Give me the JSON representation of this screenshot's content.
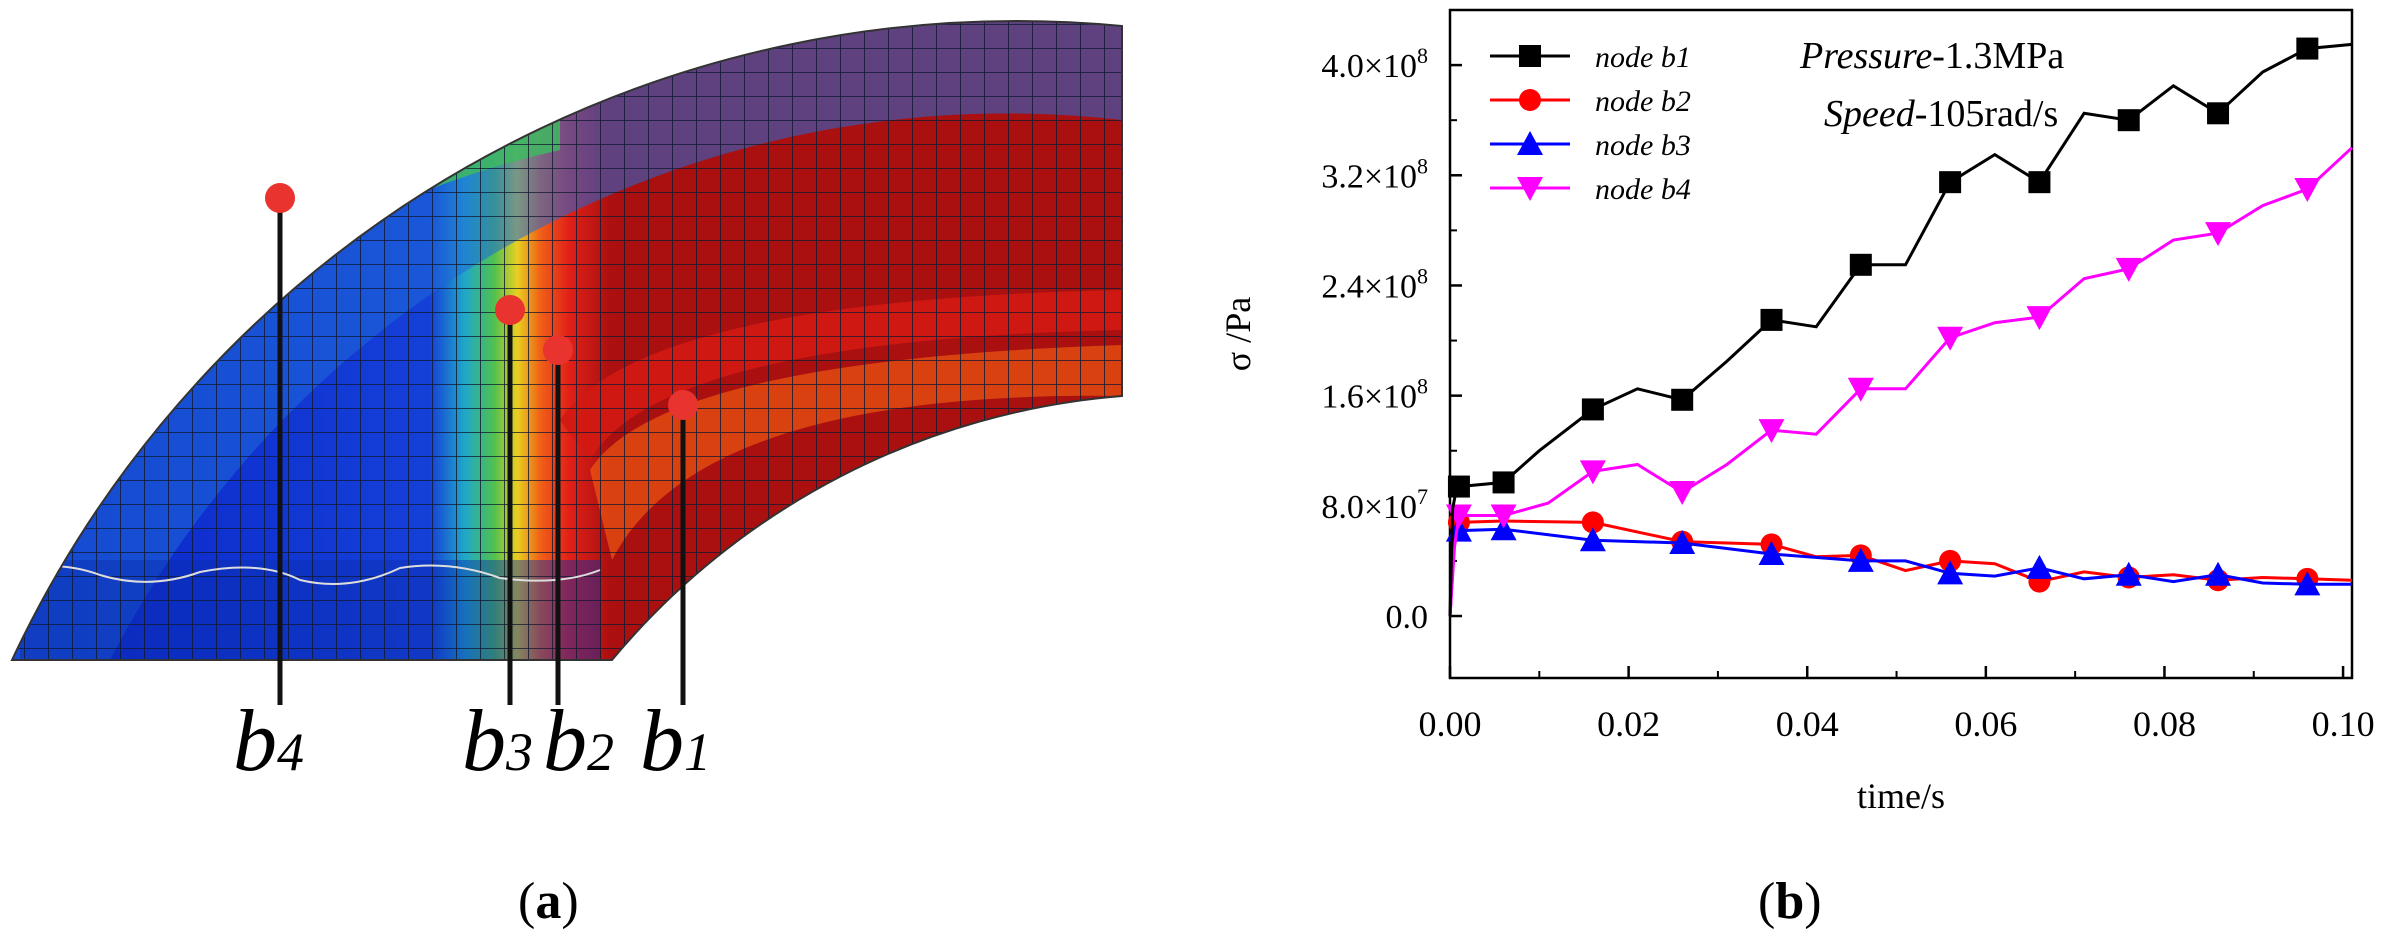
{
  "panel_a": {
    "label_open": "(",
    "label_letter": "a",
    "label_close": ")",
    "nodes": [
      {
        "id": "b4",
        "base": "b",
        "sub": "4"
      },
      {
        "id": "b3",
        "base": "b",
        "sub": "3"
      },
      {
        "id": "b2",
        "base": "b",
        "sub": "2"
      },
      {
        "id": "b1",
        "base": "b",
        "sub": "1"
      }
    ],
    "colors": {
      "marker": "#e8332e",
      "leader": "#111111"
    }
  },
  "panel_b": {
    "label_open": "(",
    "label_letter": "b",
    "label_close": ")",
    "annotation": {
      "pressure_italic": "Pressure",
      "pressure_value": "-1.3MPa",
      "speed_italic": "Speed",
      "speed_value": "-105rad/s"
    }
  },
  "chart_data": {
    "type": "line",
    "xlabel": "time/s",
    "ylabel": "σ /Pa",
    "xlim": [
      0,
      0.101
    ],
    "ylim": [
      -45000000.0,
      440000000.0
    ],
    "x_ticks": [
      {
        "value": 0.0,
        "label": "0.00"
      },
      {
        "value": 0.02,
        "label": "0.02"
      },
      {
        "value": 0.04,
        "label": "0.04"
      },
      {
        "value": 0.06,
        "label": "0.06"
      },
      {
        "value": 0.08,
        "label": "0.08"
      },
      {
        "value": 0.1,
        "label": "0.10"
      }
    ],
    "y_ticks": [
      {
        "value": 0,
        "label": "0.0",
        "mant": "0.0",
        "exp": ""
      },
      {
        "value": 80000000.0,
        "label": "8.0×10^7",
        "mant": "8.0×10",
        "exp": "7"
      },
      {
        "value": 160000000.0,
        "label": "1.6×10^8",
        "mant": "1.6×10",
        "exp": "8"
      },
      {
        "value": 240000000.0,
        "label": "2.4×10^8",
        "mant": "2.4×10",
        "exp": "8"
      },
      {
        "value": 320000000.0,
        "label": "3.2×10^8",
        "mant": "3.2×10",
        "exp": "8"
      },
      {
        "value": 400000000.0,
        "label": "4.0×10^8",
        "mant": "4.0×10",
        "exp": "8"
      }
    ],
    "series": [
      {
        "name": "node b1",
        "color": "#000000",
        "marker": "square",
        "points": [
          [
            0,
            0
          ],
          [
            0.0003,
            78000000.0
          ],
          [
            0.0007,
            92000000.0
          ],
          [
            0.001,
            94000000.0
          ],
          [
            0.006,
            97000000.0
          ],
          [
            0.01,
            120000000.0
          ],
          [
            0.016,
            150000000.0
          ],
          [
            0.021,
            165000000.0
          ],
          [
            0.026,
            157000000.0
          ],
          [
            0.031,
            185000000.0
          ],
          [
            0.036,
            215000000.0
          ],
          [
            0.041,
            210000000.0
          ],
          [
            0.046,
            255000000.0
          ],
          [
            0.051,
            255000000.0
          ],
          [
            0.056,
            315000000.0
          ],
          [
            0.061,
            335000000.0
          ],
          [
            0.066,
            315000000.0
          ],
          [
            0.071,
            365000000.0
          ],
          [
            0.076,
            360000000.0
          ],
          [
            0.081,
            385000000.0
          ],
          [
            0.086,
            365000000.0
          ],
          [
            0.091,
            395000000.0
          ],
          [
            0.096,
            412000000.0
          ],
          [
            0.101,
            415000000.0
          ]
        ],
        "markers": [
          [
            0.001,
            94000000.0
          ],
          [
            0.006,
            97000000.0
          ],
          [
            0.016,
            150000000.0
          ],
          [
            0.026,
            157000000.0
          ],
          [
            0.036,
            215000000.0
          ],
          [
            0.046,
            255000000.0
          ],
          [
            0.056,
            315000000.0
          ],
          [
            0.066,
            315000000.0
          ],
          [
            0.076,
            360000000.0
          ],
          [
            0.086,
            365000000.0
          ],
          [
            0.096,
            412000000.0
          ]
        ]
      },
      {
        "name": "node b2",
        "color": "#ff0000",
        "marker": "circle",
        "points": [
          [
            0,
            0
          ],
          [
            0.0005,
            60000000.0
          ],
          [
            0.001,
            68000000.0
          ],
          [
            0.006,
            69000000.0
          ],
          [
            0.016,
            68000000.0
          ],
          [
            0.026,
            54000000.0
          ],
          [
            0.036,
            52000000.0
          ],
          [
            0.041,
            43000000.0
          ],
          [
            0.046,
            44000000.0
          ],
          [
            0.051,
            33000000.0
          ],
          [
            0.056,
            40000000.0
          ],
          [
            0.061,
            38000000.0
          ],
          [
            0.066,
            25000000.0
          ],
          [
            0.071,
            32000000.0
          ],
          [
            0.076,
            28000000.0
          ],
          [
            0.081,
            30000000.0
          ],
          [
            0.086,
            26000000.0
          ],
          [
            0.091,
            28000000.0
          ],
          [
            0.096,
            27000000.0
          ],
          [
            0.101,
            26000000.0
          ]
        ],
        "markers": [
          [
            0.001,
            68000000.0
          ],
          [
            0.016,
            68000000.0
          ],
          [
            0.026,
            54000000.0
          ],
          [
            0.036,
            52000000.0
          ],
          [
            0.046,
            44000000.0
          ],
          [
            0.056,
            40000000.0
          ],
          [
            0.066,
            25000000.0
          ],
          [
            0.076,
            28000000.0
          ],
          [
            0.086,
            26000000.0
          ],
          [
            0.096,
            27000000.0
          ]
        ]
      },
      {
        "name": "node b3",
        "color": "#0000ff",
        "marker": "triangle-up",
        "points": [
          [
            0,
            0
          ],
          [
            0.0005,
            55000000.0
          ],
          [
            0.001,
            62000000.0
          ],
          [
            0.006,
            63000000.0
          ],
          [
            0.016,
            55000000.0
          ],
          [
            0.026,
            53000000.0
          ],
          [
            0.036,
            45000000.0
          ],
          [
            0.046,
            40000000.0
          ],
          [
            0.051,
            40000000.0
          ],
          [
            0.056,
            31000000.0
          ],
          [
            0.061,
            29000000.0
          ],
          [
            0.066,
            35000000.0
          ],
          [
            0.071,
            27000000.0
          ],
          [
            0.076,
            30000000.0
          ],
          [
            0.081,
            25000000.0
          ],
          [
            0.086,
            30000000.0
          ],
          [
            0.091,
            24000000.0
          ],
          [
            0.096,
            23000000.0
          ],
          [
            0.101,
            23000000.0
          ]
        ],
        "markers": [
          [
            0.001,
            62000000.0
          ],
          [
            0.006,
            63000000.0
          ],
          [
            0.016,
            55000000.0
          ],
          [
            0.026,
            53000000.0
          ],
          [
            0.036,
            45000000.0
          ],
          [
            0.046,
            40000000.0
          ],
          [
            0.056,
            31000000.0
          ],
          [
            0.066,
            35000000.0
          ],
          [
            0.076,
            30000000.0
          ],
          [
            0.086,
            30000000.0
          ],
          [
            0.096,
            23000000.0
          ]
        ]
      },
      {
        "name": "node b4",
        "color": "#ff00ff",
        "marker": "triangle-down",
        "points": [
          [
            0,
            0
          ],
          [
            0.0005,
            50000000.0
          ],
          [
            0.001,
            73000000.0
          ],
          [
            0.006,
            73000000.0
          ],
          [
            0.011,
            82000000.0
          ],
          [
            0.016,
            105000000.0
          ],
          [
            0.021,
            110000000.0
          ],
          [
            0.026,
            90000000.0
          ],
          [
            0.031,
            110000000.0
          ],
          [
            0.036,
            135000000.0
          ],
          [
            0.041,
            132000000.0
          ],
          [
            0.046,
            165000000.0
          ],
          [
            0.051,
            165000000.0
          ],
          [
            0.056,
            202000000.0
          ],
          [
            0.061,
            213000000.0
          ],
          [
            0.066,
            217000000.0
          ],
          [
            0.071,
            245000000.0
          ],
          [
            0.076,
            252000000.0
          ],
          [
            0.081,
            273000000.0
          ],
          [
            0.086,
            278000000.0
          ],
          [
            0.091,
            298000000.0
          ],
          [
            0.096,
            310000000.0
          ],
          [
            0.101,
            340000000.0
          ]
        ],
        "markers": [
          [
            0.001,
            73000000.0
          ],
          [
            0.006,
            73000000.0
          ],
          [
            0.016,
            105000000.0
          ],
          [
            0.026,
            90000000.0
          ],
          [
            0.036,
            135000000.0
          ],
          [
            0.046,
            165000000.0
          ],
          [
            0.056,
            202000000.0
          ],
          [
            0.066,
            217000000.0
          ],
          [
            0.076,
            252000000.0
          ],
          [
            0.086,
            278000000.0
          ],
          [
            0.096,
            310000000.0
          ]
        ]
      }
    ]
  }
}
